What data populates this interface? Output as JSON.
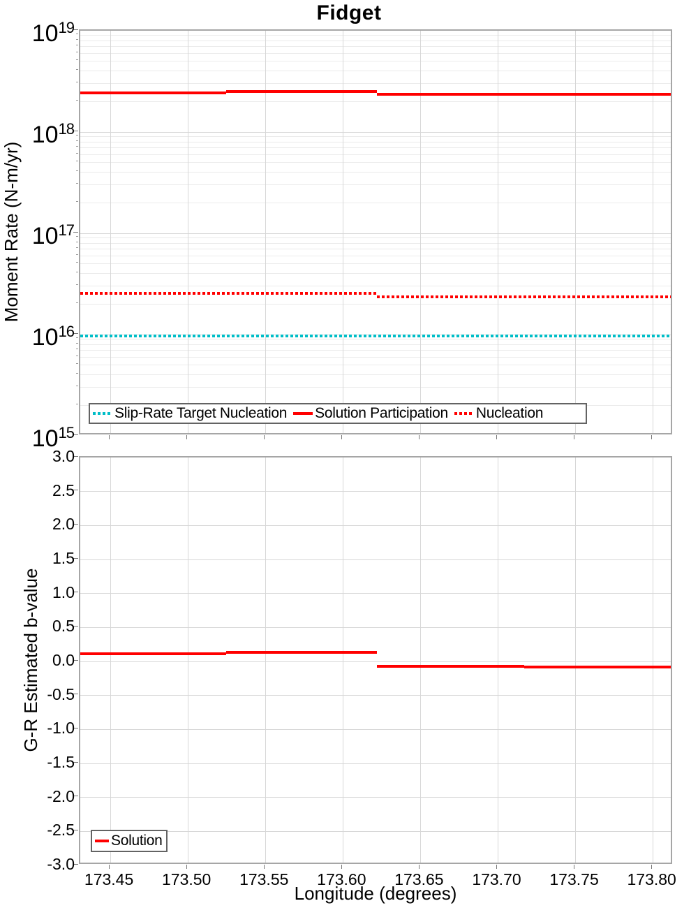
{
  "title": "Fidget",
  "colors": {
    "red": "#ff0000",
    "cyan": "#00bdc7",
    "grid_major": "#d7d7d7",
    "grid_minor": "#ebebeb",
    "frame": "#a6a6a6",
    "tick_mark": "#777777",
    "legend_border": "#636363",
    "text": "#000000"
  },
  "chart_data": [
    {
      "type": "line",
      "title": "Fidget",
      "ylabel": "Moment Rate (N-m/yr)",
      "yscale": "log",
      "ylim": [
        1000000000000000.0,
        1e+19
      ],
      "xlim": [
        173.4306,
        173.8132
      ],
      "xticks": [
        173.45,
        173.5,
        173.55,
        173.6,
        173.65,
        173.7,
        173.75,
        173.8
      ],
      "ytick_exponents": [
        19,
        18,
        17,
        16,
        15
      ],
      "grid": true,
      "legend_position": "bottom-left",
      "series": [
        {
          "name": "Slip-Rate Target Nucleation",
          "color_key": "cyan",
          "style": "dotted",
          "segments": [
            {
              "x": [
                173.4306,
                173.8132
              ],
              "y": 9700000000000000.0
            }
          ]
        },
        {
          "name": "Solution Participation",
          "color_key": "red",
          "style": "solid",
          "segments": [
            {
              "x": [
                173.4306,
                173.5245
              ],
              "y": 2.42e+18
            },
            {
              "x": [
                173.5245,
                173.622
              ],
              "y": 2.5e+18
            },
            {
              "x": [
                173.622,
                173.8132
              ],
              "y": 2.35e+18
            }
          ]
        },
        {
          "name": "Nucleation",
          "color_key": "red",
          "style": "dotted",
          "segments": [
            {
              "x": [
                173.4306,
                173.622
              ],
              "y": 2.55e+16
            },
            {
              "x": [
                173.622,
                173.8132
              ],
              "y": 2.35e+16
            }
          ]
        }
      ]
    },
    {
      "type": "line",
      "ylabel": "G-R Estimated b-value",
      "xlabel": "Longitude (degrees)",
      "yscale": "linear",
      "ylim": [
        -3.0,
        3.0
      ],
      "ytick_step": 0.5,
      "xlim": [
        173.4306,
        173.8132
      ],
      "xticks": [
        173.45,
        173.5,
        173.55,
        173.6,
        173.65,
        173.7,
        173.75,
        173.8
      ],
      "x_tick_labels": [
        "173.45",
        "173.50",
        "173.55",
        "173.60",
        "173.65",
        "173.70",
        "173.75",
        "173.80"
      ],
      "grid": true,
      "legend_position": "bottom-left",
      "series": [
        {
          "name": "Solution",
          "color_key": "red",
          "style": "solid",
          "segments": [
            {
              "x": [
                173.4306,
                173.5245
              ],
              "y": 0.11
            },
            {
              "x": [
                173.5245,
                173.622
              ],
              "y": 0.135
            },
            {
              "x": [
                173.622,
                173.717
              ],
              "y": -0.07
            },
            {
              "x": [
                173.717,
                173.8132
              ],
              "y": -0.08
            }
          ]
        }
      ]
    }
  ]
}
